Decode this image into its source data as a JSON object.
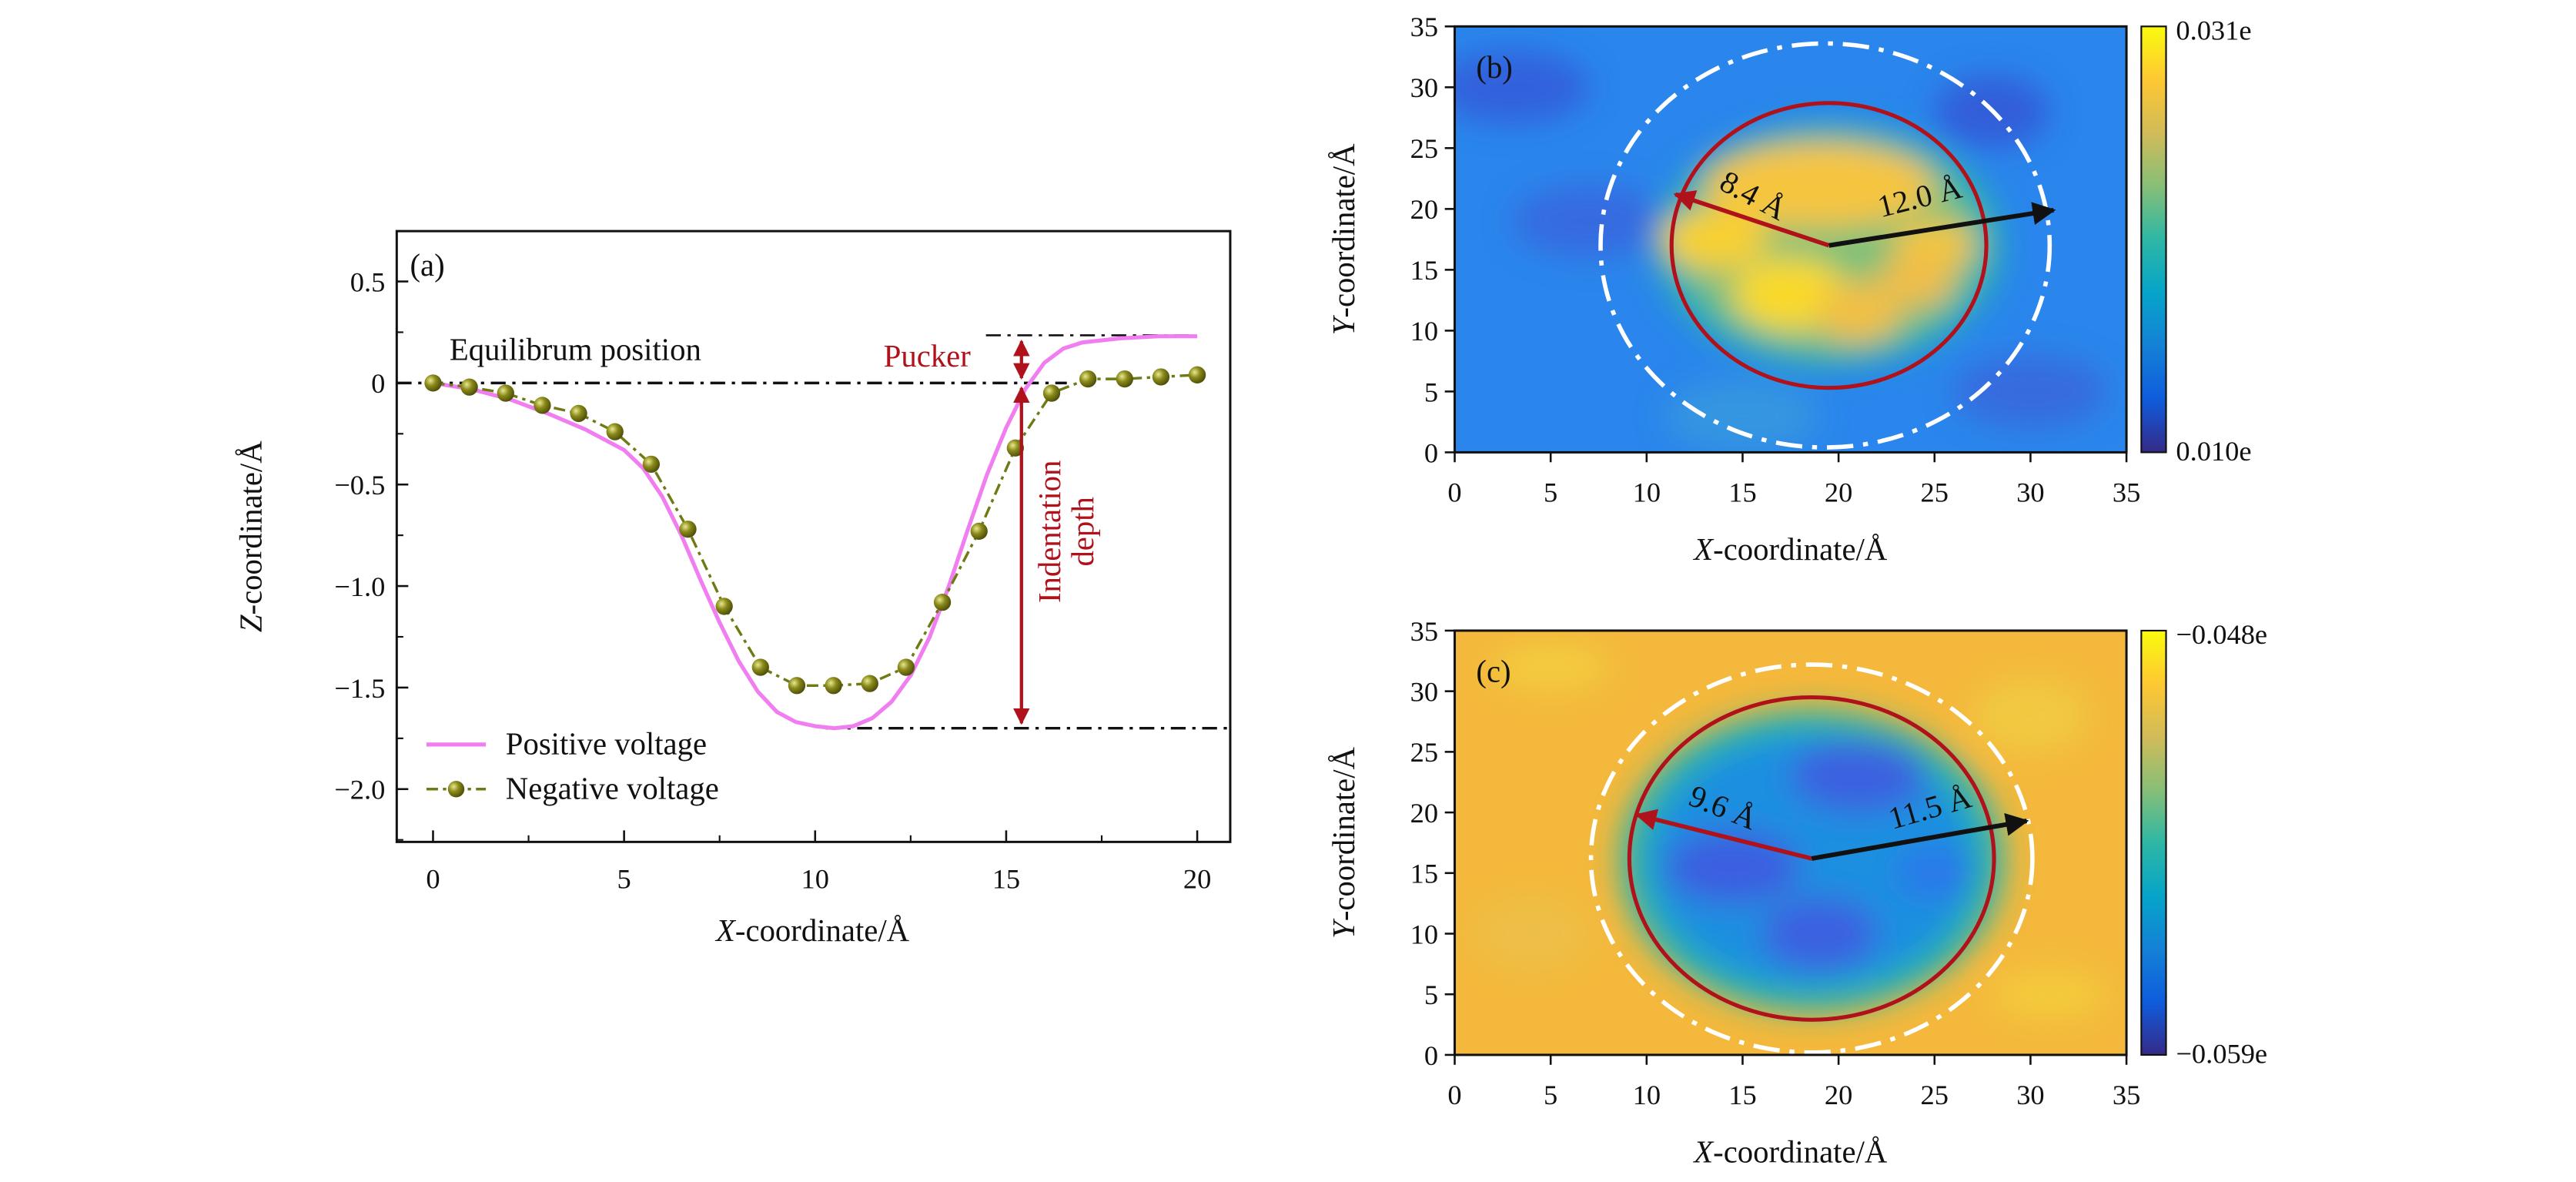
{
  "colors": {
    "positive": "#f07ef0",
    "negative_line": "#6f7a14",
    "negative_marker": "#8a8a1a",
    "annotation_red": "#b0121b",
    "guide": "#111111",
    "ellipse_white": "#ffffff",
    "parula": [
      "#352a87",
      "#0f5cdd",
      "#1481d6",
      "#06a4ca",
      "#2eb7a4",
      "#87bf77",
      "#d1bb59",
      "#fec832",
      "#f9fb0e"
    ]
  },
  "chart_data": [
    {
      "type": "line",
      "panel_label": "(a)",
      "xlabel_italic": "X",
      "xlabel_rest": "-coordinate/Å",
      "ylabel_italic": "Z",
      "ylabel_rest": "-coordinate/Å",
      "xlim": [
        -0.95,
        20.85
      ],
      "ylim": [
        -2.37,
        0.76
      ],
      "xticks": [
        "0",
        "5",
        "10",
        "15",
        "20"
      ],
      "xtick_values": [
        0,
        5,
        10,
        15,
        20
      ],
      "yticks": [
        "0.5",
        "0",
        "−0.5",
        "−1.0",
        "−1.5",
        "−2.0"
      ],
      "ytick_values": [
        0.5,
        0,
        -0.5,
        -1.0,
        -1.5,
        -2.0
      ],
      "grid": false,
      "legend_position": "bottom-left",
      "series": [
        {
          "name": "Positive voltage",
          "style": "solid line",
          "x": [
            0,
            1,
            2,
            3,
            4,
            5,
            5.5,
            6,
            6.5,
            7,
            7.5,
            8,
            8.5,
            9,
            9.5,
            10,
            10.5,
            11,
            11.5,
            12,
            12.5,
            13,
            13.5,
            14,
            14.5,
            15,
            15.5,
            16,
            16.5,
            17,
            18,
            19,
            20
          ],
          "y": [
            0,
            -0.03,
            -0.08,
            -0.15,
            -0.23,
            -0.33,
            -0.42,
            -0.56,
            -0.75,
            -0.97,
            -1.18,
            -1.37,
            -1.52,
            -1.62,
            -1.67,
            -1.69,
            -1.7,
            -1.69,
            -1.65,
            -1.57,
            -1.44,
            -1.25,
            -1.0,
            -0.72,
            -0.45,
            -0.22,
            -0.03,
            0.1,
            0.17,
            0.2,
            0.22,
            0.23,
            0.23
          ]
        },
        {
          "name": "Negative voltage",
          "style": "dash-dot line with spheres",
          "x": [
            0,
            0.95,
            1.9,
            2.86,
            3.81,
            4.76,
            5.71,
            6.67,
            7.62,
            8.57,
            9.52,
            10.48,
            11.43,
            12.38,
            13.33,
            14.29,
            15.24,
            16.19,
            17.14,
            18.1,
            19.05,
            20
          ],
          "y": [
            0,
            -0.02,
            -0.05,
            -0.11,
            -0.15,
            -0.24,
            -0.4,
            -0.72,
            -1.1,
            -1.4,
            -1.49,
            -1.49,
            -1.48,
            -1.4,
            -1.08,
            -0.73,
            -0.32,
            -0.05,
            0.02,
            0.02,
            0.03,
            0.04
          ]
        }
      ],
      "annotations": {
        "equilibrium": {
          "text": "Equilibrum position",
          "y": 0
        },
        "pucker": {
          "text": "Pucker",
          "x": 15.4,
          "y_top": 0.23,
          "y_bottom": 0
        },
        "indentation_line1": "Indentation",
        "indentation_line2": "depth",
        "indentation": {
          "x": 15.4,
          "y_top": 0,
          "y_bottom": -1.7
        }
      }
    },
    {
      "type": "heatmap",
      "panel_label": "(b)",
      "xlabel_italic": "X",
      "xlabel_rest": "-coordinate/Å",
      "ylabel_italic": "Y",
      "ylabel_rest": "-coordinate/Å",
      "xlim": [
        0,
        35
      ],
      "ylim": [
        0,
        35
      ],
      "xticks": [
        "0",
        "5",
        "10",
        "15",
        "20",
        "25",
        "30",
        "35"
      ],
      "yticks": [
        "0",
        "5",
        "10",
        "15",
        "20",
        "25",
        "30",
        "35"
      ],
      "colorbar": {
        "max_label": "0.031e",
        "min_label": "0.010e",
        "max": 0.031,
        "min": 0.01
      },
      "pattern": "high values (yellow) concentrated in center, low (blue) outside",
      "red_ellipse": {
        "cx": 19.5,
        "cy": 17,
        "rx": 8.2,
        "ry": 11.7
      },
      "white_ellipse": {
        "cx": 19.3,
        "cy": 17,
        "rx": 11.7,
        "ry": 16.6
      },
      "red_arrow": {
        "from": [
          19.5,
          17
        ],
        "to": [
          11.5,
          21.2
        ],
        "label": "8.4 Å"
      },
      "black_arrow": {
        "from": [
          19.5,
          17
        ],
        "to": [
          31.2,
          19.9
        ],
        "label": "12.0 Å"
      }
    },
    {
      "type": "heatmap",
      "panel_label": "(c)",
      "xlabel_italic": "X",
      "xlabel_rest": "-coordinate/Å",
      "ylabel_italic": "Y",
      "ylabel_rest": "-coordinate/Å",
      "xlim": [
        0,
        35
      ],
      "ylim": [
        0,
        35
      ],
      "xticks": [
        "0",
        "5",
        "10",
        "15",
        "20",
        "25",
        "30",
        "35"
      ],
      "yticks": [
        "0",
        "5",
        "10",
        "15",
        "20",
        "25",
        "30",
        "35"
      ],
      "colorbar": {
        "max_label": "−0.048e",
        "min_label": "−0.059e",
        "max": -0.048,
        "min": -0.059
      },
      "pattern": "low values (blue) concentrated in center, high (orange-yellow) outside",
      "red_ellipse": {
        "cx": 18.6,
        "cy": 16.2,
        "rx": 9.5,
        "ry": 13.3
      },
      "white_ellipse": {
        "cx": 18.6,
        "cy": 16.2,
        "rx": 11.5,
        "ry": 16.0
      },
      "red_arrow": {
        "from": [
          18.6,
          16.2
        ],
        "to": [
          9.5,
          19.8
        ],
        "label": "9.6 Å"
      },
      "black_arrow": {
        "from": [
          18.6,
          16.2
        ],
        "to": [
          29.8,
          19.3
        ],
        "label": "11.5 Å"
      }
    }
  ]
}
